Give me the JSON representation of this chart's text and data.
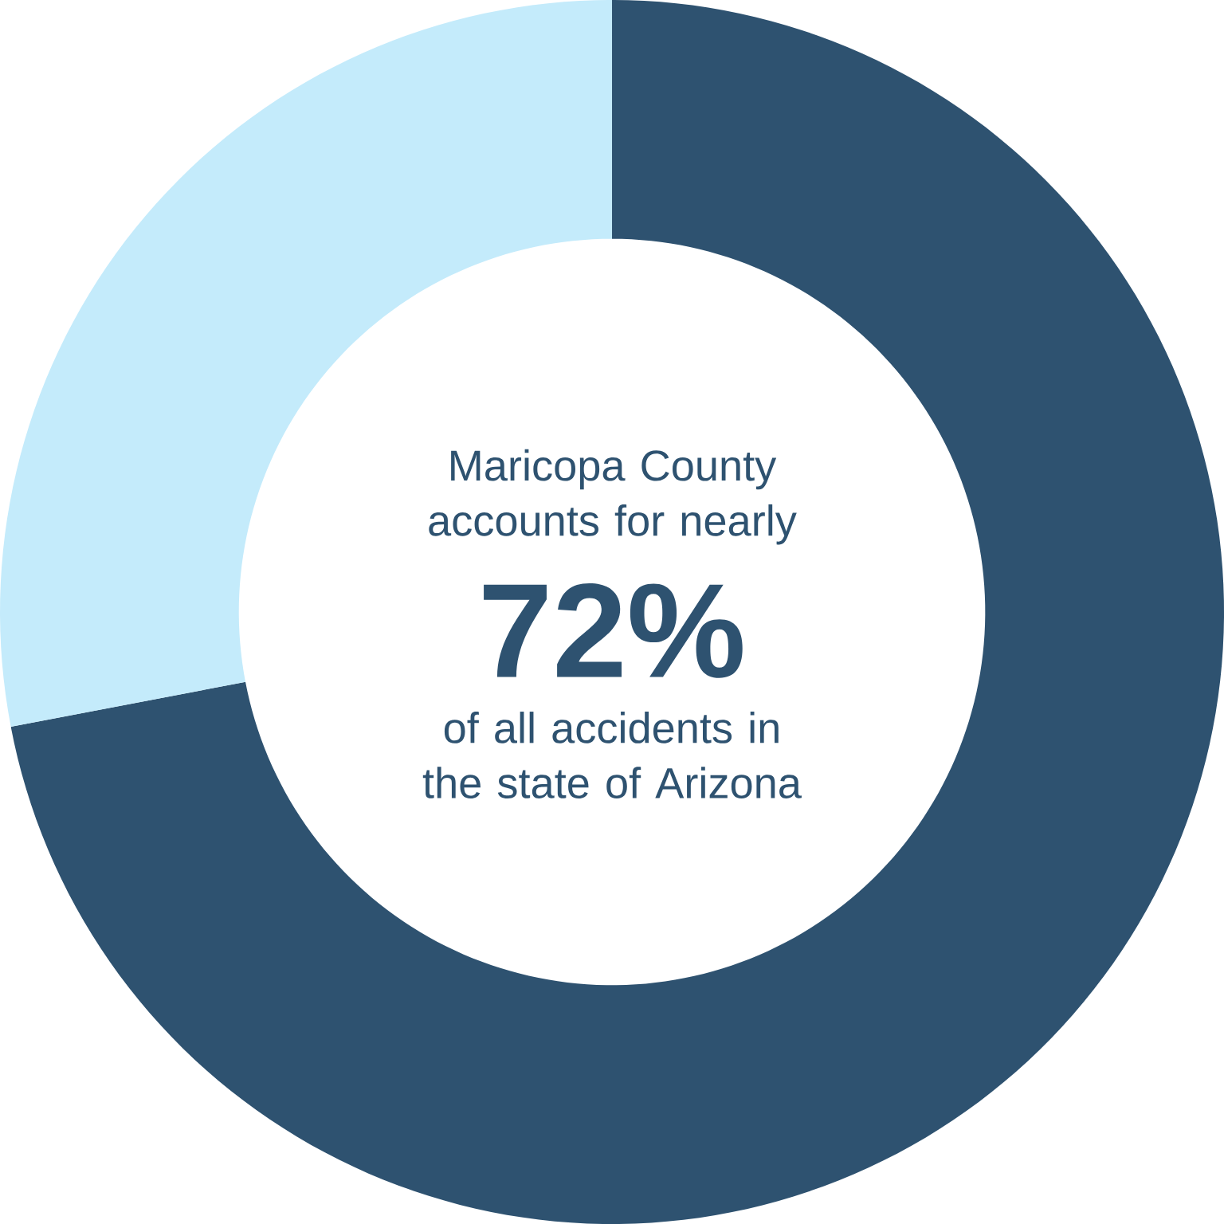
{
  "chart_data": {
    "type": "donut",
    "categories": [
      null,
      null
    ],
    "values": [
      72,
      28
    ],
    "colors": [
      "#2e5270",
      "#c4ebfb"
    ],
    "annotations": [
      "Maricopa County accounts for nearly",
      "72%",
      "of all accidents in the state of Arizona"
    ]
  }
}
